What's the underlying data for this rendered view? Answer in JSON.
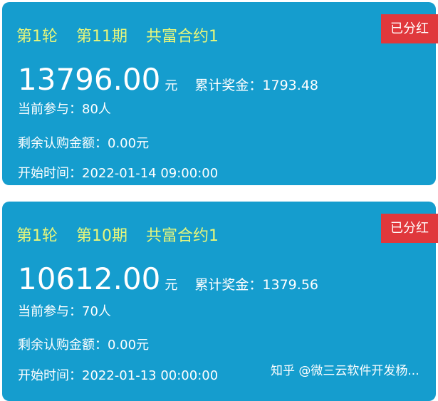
{
  "cards": [
    {
      "round": "第1轮",
      "period": "第11期",
      "contract": "共富合约1",
      "badge": "已分红",
      "amount": "13796.00",
      "unit": "元",
      "total_label": "累计奖金：",
      "total": "1793.48",
      "participants": "当前参与：80人",
      "remaining": "剩余认购金额：0.00元",
      "start": "开始时间：2022-01-14 09:00:00"
    },
    {
      "round": "第1轮",
      "period": "第10期",
      "contract": "共富合约1",
      "badge": "已分红",
      "amount": "10612.00",
      "unit": "元",
      "total_label": "累计奖金：",
      "total": "1379.56",
      "participants": "当前参与：70人",
      "remaining": "剩余认购金额：0.00元",
      "start": "开始时间：2022-01-13 00:00:00"
    }
  ],
  "watermark": "知乎 @微三云软件开发杨..."
}
